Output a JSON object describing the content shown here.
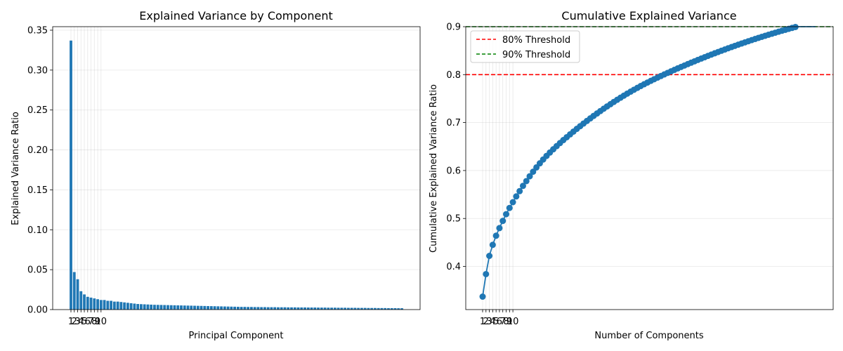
{
  "chart_data": [
    {
      "type": "bar",
      "title": "Explained Variance by Component",
      "xlabel": "Principal Component",
      "ylabel": "Explained Variance Ratio",
      "ylim": [
        0,
        0.35
      ],
      "yticks": [
        "0.00",
        "0.05",
        "0.10",
        "0.15",
        "0.20",
        "0.25",
        "0.30",
        "0.35"
      ],
      "xtick_labels": [
        "1",
        "2",
        "3",
        "4",
        "5",
        "6",
        "7",
        "8",
        "9",
        "10"
      ],
      "grid": "y-axis horizontal + vertical at first 10 ticks",
      "bar_color": "#1f77b4",
      "values": [
        0.337,
        0.047,
        0.038,
        0.023,
        0.019,
        0.016,
        0.015,
        0.014,
        0.013,
        0.012,
        0.012,
        0.011,
        0.011,
        0.01,
        0.01,
        0.0095,
        0.009,
        0.0085,
        0.008,
        0.0075,
        0.007,
        0.0068,
        0.0066,
        0.0064,
        0.0062,
        0.006,
        0.0059,
        0.0058,
        0.0057,
        0.0056,
        0.0055,
        0.0054,
        0.0053,
        0.0052,
        0.0051,
        0.005,
        0.0049,
        0.0048,
        0.0047,
        0.0046,
        0.0045,
        0.0044,
        0.0043,
        0.0042,
        0.0041,
        0.004,
        0.0039,
        0.0038,
        0.0037,
        0.0036,
        0.0035,
        0.0034,
        0.0034,
        0.0033,
        0.0033,
        0.0032,
        0.0032,
        0.0031,
        0.0031,
        0.003,
        0.003,
        0.003,
        0.0029,
        0.0029,
        0.0029,
        0.0028,
        0.0028,
        0.0028,
        0.0027,
        0.0027,
        0.0027,
        0.0026,
        0.0026,
        0.0026,
        0.0025,
        0.0025,
        0.0025,
        0.0024,
        0.0024,
        0.0024,
        0.0023,
        0.0023,
        0.0023,
        0.0022,
        0.0022,
        0.0022,
        0.0021,
        0.0021,
        0.0021,
        0.002,
        0.002,
        0.002,
        0.0019,
        0.0019,
        0.0019,
        0.0018,
        0.0018,
        0.0018,
        0.0017,
        0.0017
      ]
    },
    {
      "type": "line",
      "title": "Cumulative Explained Variance",
      "xlabel": "Number of Components",
      "ylabel": "Cumulative Explained Variance Ratio",
      "ylim": [
        0.31,
        0.9
      ],
      "yticks": [
        "0.4",
        "0.5",
        "0.6",
        "0.7",
        "0.8",
        "0.9"
      ],
      "xtick_labels": [
        "1",
        "2",
        "3",
        "4",
        "5",
        "6",
        "7",
        "8",
        "9",
        "10"
      ],
      "line_color": "#1f77b4",
      "thresholds": [
        {
          "label": "80% Threshold",
          "value": 0.8,
          "color": "#ff0000"
        },
        {
          "label": "90% Threshold",
          "value": 0.9,
          "color": "#008000"
        }
      ],
      "legend_position": "top-left",
      "series": [
        {
          "values": [
            0.337,
            0.384,
            0.422,
            0.445,
            0.464,
            0.48,
            0.495,
            0.509,
            0.522,
            0.534,
            0.546,
            0.557,
            0.568,
            0.578,
            0.588,
            0.5975,
            0.6065,
            0.615,
            0.623,
            0.6305,
            0.6375,
            0.6443,
            0.6509,
            0.6573,
            0.6635,
            0.6695,
            0.6754,
            0.6812,
            0.6869,
            0.6925,
            0.698,
            0.7034,
            0.7087,
            0.7139,
            0.719,
            0.724,
            0.7289,
            0.7337,
            0.7384,
            0.743,
            0.7475,
            0.7519,
            0.7562,
            0.7604,
            0.7645,
            0.7685,
            0.7724,
            0.7762,
            0.7799,
            0.7835,
            0.787,
            0.7904,
            0.7938,
            0.7971,
            0.8004,
            0.8036,
            0.8068,
            0.8099,
            0.813,
            0.816,
            0.819,
            0.822,
            0.8249,
            0.8278,
            0.8307,
            0.8335,
            0.8363,
            0.8391,
            0.8418,
            0.8445,
            0.8472,
            0.8498,
            0.8524,
            0.855,
            0.8575,
            0.86,
            0.8625,
            0.8649,
            0.8673,
            0.8697,
            0.872,
            0.8743,
            0.8766,
            0.8788,
            0.881,
            0.8832,
            0.8853,
            0.8874,
            0.8895,
            0.8915,
            0.8935,
            0.8955,
            0.8974,
            0.8993,
            0.9012,
            0.903,
            0.9048,
            0.9066,
            0.9083,
            0.91
          ]
        }
      ]
    }
  ]
}
